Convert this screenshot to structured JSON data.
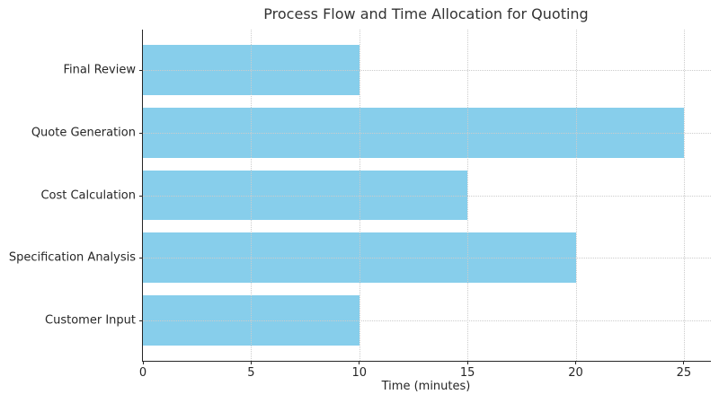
{
  "chart_data": {
    "type": "bar",
    "orientation": "horizontal",
    "title": "Process Flow and Time Allocation for Quoting",
    "xlabel": "Time (minutes)",
    "ylabel": "",
    "categories_top_to_bottom": [
      "Final Review",
      "Quote Generation",
      "Cost Calculation",
      "Specification Analysis",
      "Customer Input"
    ],
    "values": [
      10,
      25,
      15,
      20,
      10
    ],
    "xticks": [
      0,
      5,
      10,
      15,
      20,
      25
    ],
    "xlim": [
      0,
      26.25
    ],
    "bar_color": "#87CEEB",
    "grid": true,
    "grid_style": "dotted",
    "grid_color": "#cccccc",
    "grid_above_bars": true,
    "axis_color": "#262626",
    "text_color": "#333333",
    "bar_height_fraction": 0.8,
    "y_margin": 0.64,
    "legend": "none",
    "spines_visible": [
      "left",
      "bottom"
    ]
  }
}
